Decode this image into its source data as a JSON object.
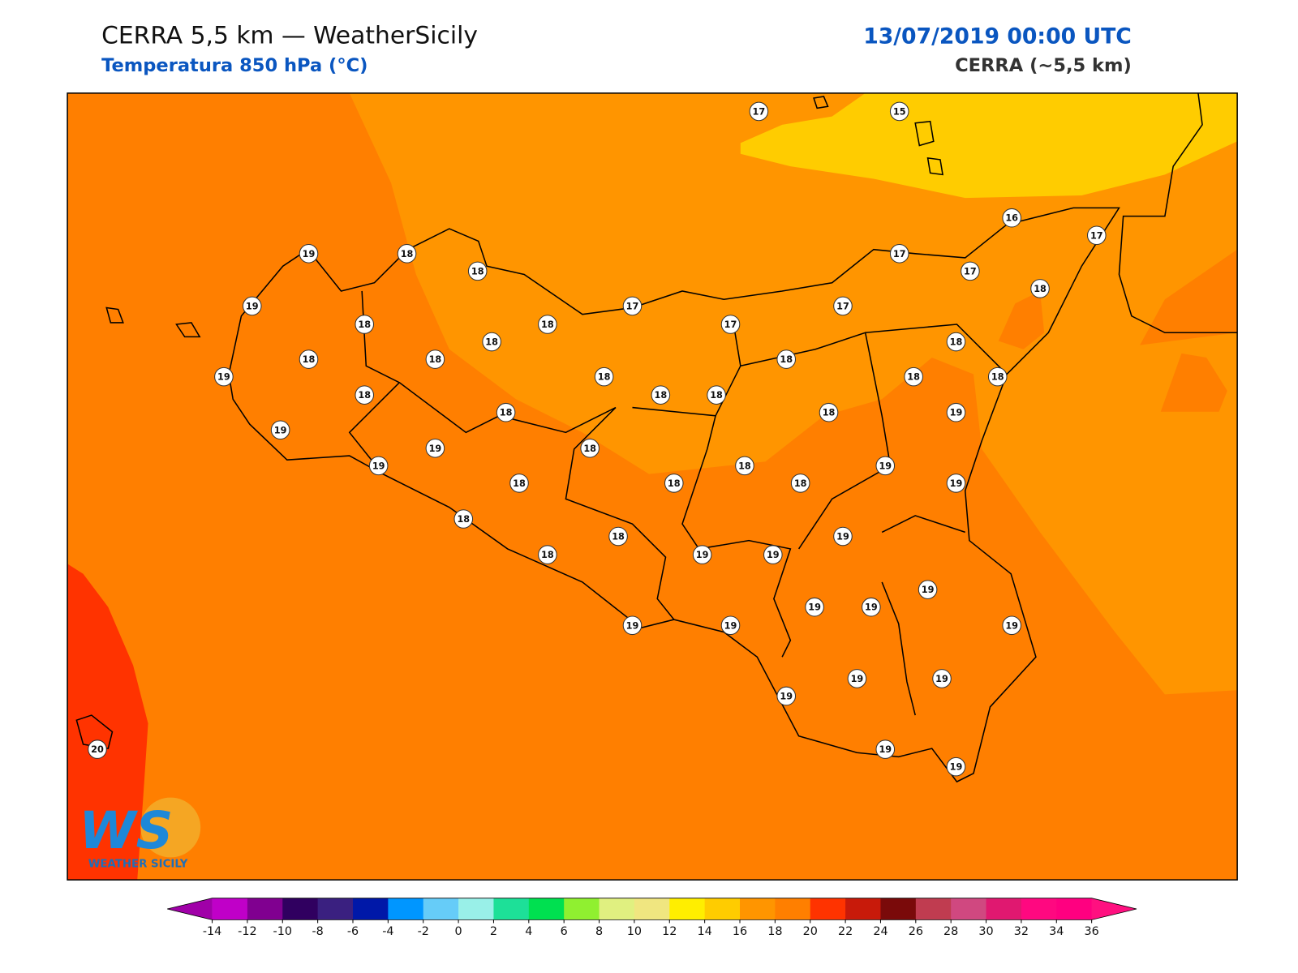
{
  "header": {
    "title": "CERRA 5,5 km — WeatherSicily",
    "subtitle": "Temperatura 850 hPa (°C)",
    "date": "13/07/2019 00:00 UTC",
    "source": "CERRA (~5,5 km)"
  },
  "map": {
    "stations": [
      17,
      15,
      16,
      17,
      19,
      18,
      18,
      17,
      17,
      18,
      19,
      18,
      18,
      17,
      17,
      17,
      18,
      18,
      18,
      18,
      18,
      19,
      18,
      18,
      18,
      18,
      18,
      18,
      18,
      18,
      19,
      19,
      19,
      18,
      19,
      18,
      19,
      18,
      18,
      18,
      19,
      18,
      18,
      19,
      18,
      19,
      19,
      19,
      19,
      19,
      19,
      19,
      19,
      19,
      19,
      19,
      20,
      19,
      19
    ]
  },
  "colorbar": {
    "ticks": [
      -14,
      -12,
      -10,
      -8,
      -6,
      -4,
      -2,
      0,
      2,
      4,
      6,
      8,
      10,
      12,
      14,
      16,
      18,
      20,
      22,
      24,
      26,
      28,
      30,
      32,
      34,
      36
    ],
    "colors": [
      "#c000c8",
      "#800090",
      "#300060",
      "#3a2080",
      "#0018a8",
      "#0096ff",
      "#66ccf8",
      "#99f0e8",
      "#1de098",
      "#00e050",
      "#90f030",
      "#e0f080",
      "#f0e680",
      "#ffee00",
      "#ffcc00",
      "#ff9500",
      "#ff7f00",
      "#ff3300",
      "#c81a0a",
      "#7a0a0a",
      "#c03c50",
      "#d04880",
      "#e01870",
      "#ff0880",
      "#ff0080"
    ],
    "under_color": "#a000a8",
    "over_color": "#ff1080"
  },
  "logo": {
    "mark": "WS",
    "text": "WEATHER SICILY"
  }
}
